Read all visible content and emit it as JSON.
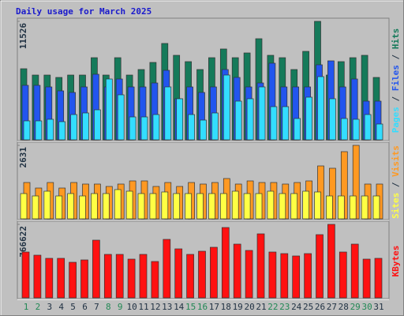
{
  "legend_separator": " / ",
  "chart_data": [
    {
      "type": "bar",
      "title": "Daily usage for March 2025",
      "categories": [
        "1",
        "2",
        "3",
        "4",
        "5",
        "6",
        "7",
        "8",
        "9",
        "10",
        "11",
        "12",
        "13",
        "14",
        "15",
        "16",
        "17",
        "18",
        "19",
        "20",
        "21",
        "22",
        "23",
        "24",
        "25",
        "26",
        "27",
        "28",
        "29",
        "30",
        "31"
      ],
      "category_colors": [
        "#228855",
        "#228855",
        "#223344",
        "#223344",
        "#223344",
        "#223344",
        "#223344",
        "#228855",
        "#228855",
        "#223344",
        "#223344",
        "#223344",
        "#223344",
        "#223344",
        "#228855",
        "#228855",
        "#223344",
        "#223344",
        "#223344",
        "#223344",
        "#223344",
        "#228855",
        "#228855",
        "#223344",
        "#223344",
        "#223344",
        "#223344",
        "#223344",
        "#228855",
        "#228855",
        "#223344"
      ],
      "ylim": [
        0,
        11526
      ],
      "yticks": [
        11526
      ],
      "series": [
        {
          "name": "Pages",
          "color": "#33ddff",
          "values": [
            1844,
            1844,
            1998,
            1767,
            2459,
            2613,
            2920,
            5917,
            4380,
            2228,
            2228,
            2459,
            5148,
            3996,
            2459,
            1921,
            2613,
            6301,
            3765,
            3996,
            5148,
            3227,
            3227,
            2075,
            4149,
            6147,
            3996,
            2075,
            1998,
            2459,
            1537
          ]
        },
        {
          "name": "Files",
          "color": "#2255ee",
          "values": [
            5302,
            5302,
            5148,
            4764,
            4610,
            5148,
            6378,
            5148,
            5917,
            5148,
            5148,
            5532,
            6762,
            3996,
            5148,
            4610,
            5148,
            6839,
            6070,
            5148,
            5532,
            7454,
            5148,
            5148,
            5148,
            7300,
            7684,
            5148,
            5917,
            3765,
            3765
          ]
        },
        {
          "name": "Hits",
          "color": "#157a5a",
          "values": [
            6916,
            6301,
            6301,
            6070,
            6301,
            6301,
            7991,
            6301,
            7991,
            6301,
            6839,
            7530,
            9375,
            8222,
            7607,
            6839,
            7991,
            8837,
            7991,
            8452,
            9836,
            8222,
            7991,
            6839,
            8606,
            11526,
            6301,
            7607,
            7991,
            8222,
            6070
          ]
        }
      ]
    },
    {
      "type": "bar",
      "ylim": [
        0,
        2631
      ],
      "yticks": [
        2631
      ],
      "series": [
        {
          "name": "Sites",
          "color": "#ffff44",
          "values": [
            905,
            820,
            990,
            820,
            905,
            820,
            905,
            905,
            1047,
            990,
            905,
            905,
            962,
            905,
            905,
            905,
            905,
            905,
            990,
            905,
            905,
            990,
            905,
            905,
            990,
            962,
            820,
            820,
            820,
            820,
            820
          ]
        },
        {
          "name": "Visits",
          "color": "#ff9922",
          "values": [
            1301,
            1103,
            1301,
            1103,
            1301,
            1245,
            1245,
            1160,
            1245,
            1358,
            1358,
            1160,
            1301,
            1160,
            1301,
            1245,
            1301,
            1443,
            1245,
            1358,
            1301,
            1301,
            1245,
            1301,
            1358,
            1895,
            1811,
            2405,
            2631,
            1245,
            1245
          ]
        }
      ]
    },
    {
      "type": "bar",
      "ylim": [
        0,
        766622
      ],
      "yticks": [
        766622
      ],
      "series": [
        {
          "name": "KBytes",
          "color": "#ff1111",
          "values": [
            478094,
            445122,
            412150,
            412150,
            370935,
            395664,
            601739,
            453365,
            453365,
            403907,
            453365,
            379178,
            609982,
            511066,
            453365,
            486337,
            527552,
            733627,
            560524,
            494580,
            667683,
            478094,
            461608,
            436879,
            461608,
            659440,
            766622,
            478094,
            560524,
            403907,
            412150
          ]
        }
      ]
    }
  ]
}
